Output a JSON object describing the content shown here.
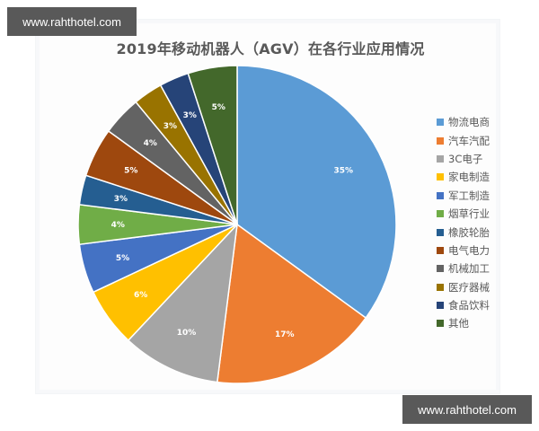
{
  "watermarks": {
    "top": "www.rahthotel.com",
    "bottom": "www.rahthotel.com"
  },
  "chart_data": {
    "type": "pie",
    "title": "2019年移动机器人（AGV）在各行业应用情况",
    "xlabel": "",
    "ylabel": "",
    "legend_position": "right",
    "start_angle": "12 o'clock, clockwise",
    "categories": [
      "物流电商",
      "汽车汽配",
      "3C电子",
      "家电制造",
      "军工制造",
      "烟草行业",
      "橡胶轮胎",
      "电气电力",
      "机械加工",
      "医疗器械",
      "食品饮料",
      "其他"
    ],
    "values": [
      35,
      17,
      10,
      6,
      5,
      4,
      3,
      5,
      4,
      3,
      3,
      5
    ],
    "labels": [
      "35%",
      "17%",
      "10%",
      "6%",
      "5%",
      "4%",
      "3%",
      "5%",
      "4%",
      "3%",
      "3%",
      "5%"
    ],
    "colors": [
      "#5b9bd5",
      "#ed7d31",
      "#a5a5a5",
      "#ffc000",
      "#4472c4",
      "#70ad47",
      "#255e91",
      "#9e480e",
      "#636363",
      "#997300",
      "#264478",
      "#43682b"
    ],
    "unit": "%"
  }
}
